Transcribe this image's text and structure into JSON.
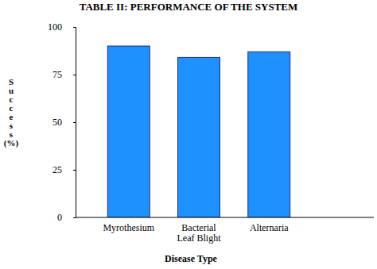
{
  "chart_data": {
    "type": "bar",
    "title": "TABLE II: PERFORMANCE OF THE SYSTEM",
    "x_label": "Disease Type",
    "y_label": "Success (%)",
    "categories": [
      "Myrothesium",
      "Bacterial Leaf Blight",
      "Alternaria"
    ],
    "values": [
      90,
      84,
      87
    ],
    "color": "#1e90ff",
    "ylim": [
      0,
      100
    ],
    "yticks": [
      0,
      25,
      50,
      75,
      100
    ],
    "grid": false
  }
}
